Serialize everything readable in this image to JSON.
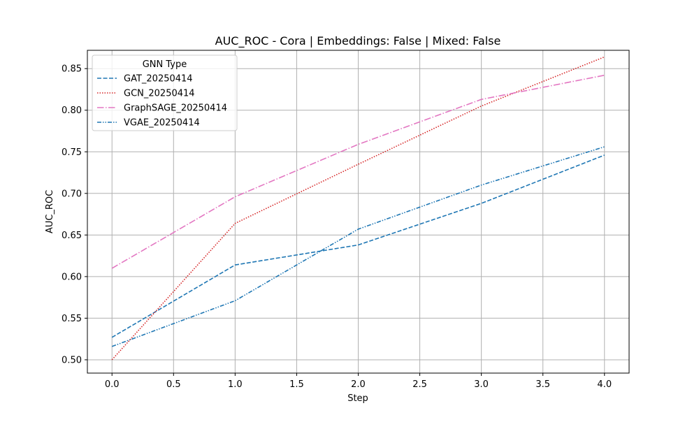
{
  "chart_data": {
    "type": "line",
    "title": "AUC_ROC - Cora | Embeddings: False | Mixed: False",
    "xlabel": "Step",
    "ylabel": "AUC_ROC",
    "xlim": [
      -0.2,
      4.2
    ],
    "ylim": [
      0.484,
      0.872
    ],
    "xticks": [
      0.0,
      0.5,
      1.0,
      1.5,
      2.0,
      2.5,
      3.0,
      3.5,
      4.0
    ],
    "xtick_labels": [
      "0.0",
      "0.5",
      "1.0",
      "1.5",
      "2.0",
      "2.5",
      "3.0",
      "3.5",
      "4.0"
    ],
    "yticks": [
      0.5,
      0.55,
      0.6,
      0.65,
      0.7,
      0.75,
      0.8,
      0.85
    ],
    "ytick_labels": [
      "0.50",
      "0.55",
      "0.60",
      "0.65",
      "0.70",
      "0.75",
      "0.80",
      "0.85"
    ],
    "grid": true,
    "legend": {
      "title": "GNN Type",
      "placement": "upper-left"
    },
    "x": [
      0,
      1,
      2,
      3,
      4
    ],
    "series": [
      {
        "name": "GAT_20250414",
        "color": "#1f77b4",
        "linestyle": "dashed",
        "values": [
          0.527,
          0.614,
          0.638,
          0.688,
          0.746
        ]
      },
      {
        "name": "GCN_20250414",
        "color": "#d62728",
        "linestyle": "dotted",
        "values": [
          0.5,
          0.664,
          0.735,
          0.805,
          0.864
        ]
      },
      {
        "name": "GraphSAGE_20250414",
        "color": "#e377c2",
        "linestyle": "dashdot",
        "values": [
          0.61,
          0.696,
          0.759,
          0.813,
          0.842
        ]
      },
      {
        "name": "VGAE_20250414",
        "color": "#1f77b4",
        "linestyle": "dashdotdot",
        "values": [
          0.516,
          0.571,
          0.657,
          0.71,
          0.756
        ]
      }
    ]
  }
}
